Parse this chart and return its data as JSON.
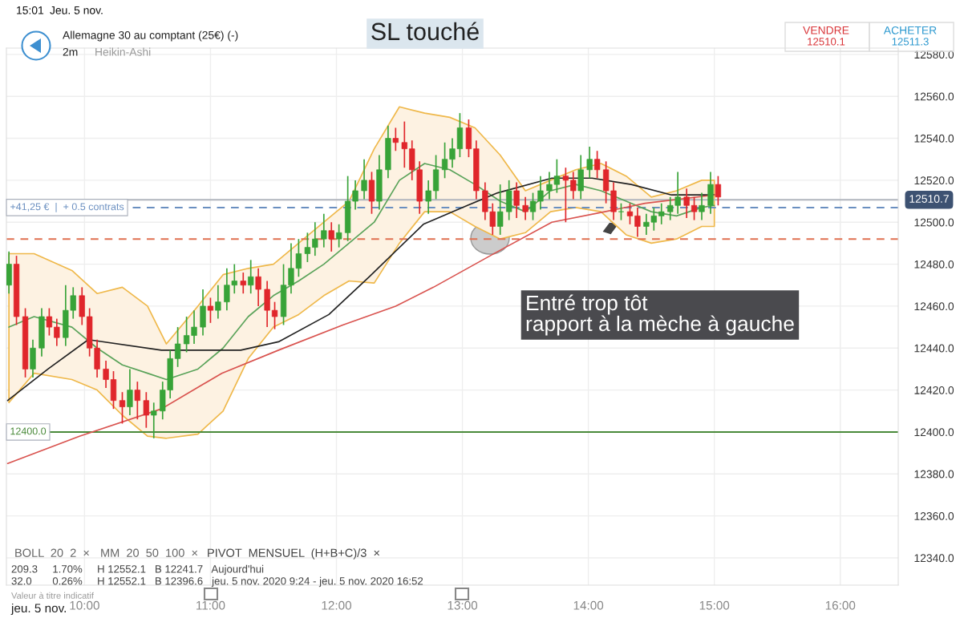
{
  "chart_data": {
    "type": "candlestick",
    "title": "SL touché",
    "annotations": [
      "15:01",
      "Jeu. 5 nov.",
      "Allemagne 30 au comptant (25€) (-)",
      "2m",
      "Heikin-Ashi",
      "VENDRE",
      "12510.1",
      "ACHETER",
      "12511.3",
      "BOLL  20  2  ×",
      "MM  20  50  100  ×",
      "PIVOT  MENSUEL  (H+B+C)/3  ×",
      "209.3     1.70%     H 12552.1   B 12241.7   Aujourd'hui",
      "32.0       0.26%     H 12552.1   B 12396.6   jeu. 5 nov. 2020 9:24 - jeu. 5 nov. 2020 16:52",
      "Valeur à titre indicatif",
      "jeu. 5 nov.",
      "Entré trop tôt\nrapport à la mèche à gauche"
    ],
    "x": [
      9.4,
      9.46,
      9.53,
      9.59,
      9.66,
      9.72,
      9.78,
      9.85,
      9.91,
      9.98,
      10.04,
      10.1,
      10.17,
      10.23,
      10.3,
      10.36,
      10.42,
      10.49,
      10.55,
      10.62,
      10.68,
      10.74,
      10.81,
      10.87,
      10.94,
      11.0,
      11.06,
      11.13,
      11.19,
      11.26,
      11.32,
      11.38,
      11.45,
      11.51,
      11.58,
      11.64,
      11.7,
      11.77,
      11.83,
      11.9,
      11.96,
      12.02,
      12.09,
      12.15,
      12.22,
      12.28,
      12.34,
      12.41,
      12.47,
      12.54,
      12.6,
      12.66,
      12.73,
      12.79,
      12.86,
      12.92,
      12.98,
      13.05,
      13.11,
      13.18,
      13.24,
      13.3,
      13.37,
      13.43,
      13.5,
      13.56,
      13.62,
      13.69,
      13.75,
      13.82,
      13.88,
      13.94,
      14.01,
      14.07,
      14.14,
      14.2,
      14.26,
      14.33,
      14.39,
      14.46,
      14.52,
      14.58,
      14.65,
      14.71,
      14.78,
      14.84,
      14.9,
      14.97,
      15.03
    ],
    "ohlc": [
      [
        12470,
        12486,
        12466,
        12480
      ],
      [
        12480,
        12484,
        12451,
        12455
      ],
      [
        12455,
        12459,
        12426,
        12430
      ],
      [
        12430,
        12444,
        12426,
        12440
      ],
      [
        12440,
        12459,
        12436,
        12455
      ],
      [
        12455,
        12459,
        12446,
        12450
      ],
      [
        12450,
        12454,
        12441,
        12445
      ],
      [
        12445,
        12470,
        12441,
        12458
      ],
      [
        12458,
        12469,
        12454,
        12465
      ],
      [
        12465,
        12469,
        12451,
        12455
      ],
      [
        12455,
        12459,
        12436,
        12440
      ],
      [
        12440,
        12444,
        12426,
        12430
      ],
      [
        12430,
        12434,
        12421,
        12425
      ],
      [
        12425,
        12429,
        12411,
        12415
      ],
      [
        12415,
        12419,
        12404,
        12412
      ],
      [
        12412,
        12430,
        12408,
        12420
      ],
      [
        12420,
        12424,
        12406,
        12415
      ],
      [
        12415,
        12419,
        12402,
        12408
      ],
      [
        12408,
        12414,
        12397,
        12410
      ],
      [
        12410,
        12424,
        12406,
        12420
      ],
      [
        12420,
        12439,
        12416,
        12435
      ],
      [
        12435,
        12450,
        12431,
        12442
      ],
      [
        12442,
        12455,
        12438,
        12446
      ],
      [
        12446,
        12458,
        12442,
        12450
      ],
      [
        12450,
        12468,
        12446,
        12460
      ],
      [
        12460,
        12464,
        12452,
        12458
      ],
      [
        12458,
        12470,
        12454,
        12462
      ],
      [
        12462,
        12478,
        12458,
        12470
      ],
      [
        12470,
        12480,
        12466,
        12472
      ],
      [
        12472,
        12476,
        12466,
        12470
      ],
      [
        12470,
        12482,
        12466,
        12474
      ],
      [
        12474,
        12478,
        12460,
        12468
      ],
      [
        12468,
        12472,
        12450,
        12458
      ],
      [
        12458,
        12462,
        12449,
        12455
      ],
      [
        12455,
        12480,
        12451,
        12470
      ],
      [
        12470,
        12490,
        12466,
        12478
      ],
      [
        12478,
        12492,
        12474,
        12485
      ],
      [
        12485,
        12495,
        12481,
        12488
      ],
      [
        12488,
        12500,
        12484,
        12492
      ],
      [
        12492,
        12504,
        12488,
        12496
      ],
      [
        12496,
        12500,
        12486,
        12492
      ],
      [
        12492,
        12499,
        12488,
        12495
      ],
      [
        12495,
        12522,
        12491,
        12510
      ],
      [
        12510,
        12520,
        12506,
        12515
      ],
      [
        12515,
        12530,
        12511,
        12520
      ],
      [
        12520,
        12524,
        12504,
        12510
      ],
      [
        12510,
        12532,
        12506,
        12525
      ],
      [
        12525,
        12546,
        12521,
        12540
      ],
      [
        12540,
        12545,
        12534,
        12538
      ],
      [
        12538,
        12548,
        12526,
        12535
      ],
      [
        12535,
        12539,
        12520,
        12525
      ],
      [
        12525,
        12529,
        12504,
        12510
      ],
      [
        12510,
        12520,
        12504,
        12515
      ],
      [
        12515,
        12532,
        12511,
        12525
      ],
      [
        12525,
        12538,
        12521,
        12530
      ],
      [
        12530,
        12540,
        12526,
        12535
      ],
      [
        12535,
        12552,
        12531,
        12545
      ],
      [
        12545,
        12549,
        12531,
        12535
      ],
      [
        12535,
        12539,
        12511,
        12515
      ],
      [
        12515,
        12519,
        12501,
        12505
      ],
      [
        12505,
        12509,
        12494,
        12498
      ],
      [
        12498,
        12518,
        12494,
        12505
      ],
      [
        12505,
        12520,
        12501,
        12515
      ],
      [
        12515,
        12519,
        12502,
        12508
      ],
      [
        12508,
        12512,
        12501,
        12505
      ],
      [
        12505,
        12514,
        12501,
        12510
      ],
      [
        12510,
        12522,
        12506,
        12515
      ],
      [
        12515,
        12524,
        12511,
        12518
      ],
      [
        12518,
        12530,
        12514,
        12522
      ],
      [
        12522,
        12526,
        12500,
        12520
      ],
      [
        12520,
        12524,
        12511,
        12515
      ],
      [
        12515,
        12532,
        12511,
        12525
      ],
      [
        12525,
        12536,
        12521,
        12530
      ],
      [
        12530,
        12534,
        12521,
        12525
      ],
      [
        12525,
        12529,
        12509,
        12515
      ],
      [
        12515,
        12519,
        12501,
        12505
      ],
      [
        12505,
        12509,
        12501,
        12505
      ],
      [
        12505,
        12509,
        12499,
        12503
      ],
      [
        12503,
        12507,
        12493,
        12498
      ],
      [
        12498,
        12504,
        12494,
        12500
      ],
      [
        12500,
        12507,
        12496,
        12503
      ],
      [
        12503,
        12509,
        12499,
        12505
      ],
      [
        12505,
        12512,
        12501,
        12508
      ],
      [
        12508,
        12524,
        12504,
        12512
      ],
      [
        12512,
        12516,
        12502,
        12508
      ],
      [
        12508,
        12512,
        12501,
        12505
      ],
      [
        12505,
        12514,
        12501,
        12508
      ],
      [
        12508,
        12524,
        12504,
        12518
      ],
      [
        12518,
        12522,
        12508,
        12512
      ]
    ],
    "series": [
      {
        "type": "line",
        "color": "#5aa35a",
        "x": [
          9.4,
          9.6,
          9.9,
          10.1,
          10.3,
          10.5,
          10.65,
          10.9,
          11.1,
          11.3,
          11.5,
          11.7,
          11.9,
          12.1,
          12.3,
          12.5,
          12.7,
          12.9,
          13.1,
          13.3,
          13.5,
          13.7,
          13.9,
          14.1,
          14.3,
          14.5,
          14.7,
          14.9,
          15.0
        ],
        "values": [
          12450,
          12455,
          12450,
          12440,
          12432,
          12428,
          12425,
          12430,
          12440,
          12455,
          12465,
          12472,
          12480,
          12490,
          12500,
          12520,
          12528,
          12525,
          12518,
          12510,
          12505,
          12515,
          12518,
          12515,
          12510,
          12505,
          12503,
          12507,
          12508
        ],
        "upper": [
          12485,
          12485,
          12477,
          12466,
          12469,
          12460,
          12442,
          12460,
          12475,
          12478,
          12480,
          12490,
          12500,
          12510,
          12535,
          12555,
          12552,
          12550,
          12545,
          12532,
          12515,
          12520,
          12525,
          12528,
          12522,
          12512,
          12515,
          12520,
          12520
        ],
        "lower": [
          12414,
          12428,
          12425,
          12420,
          12408,
          12398,
          12397,
          12399,
          12410,
          12435,
          12450,
          12456,
          12465,
          12472,
          12471,
          12490,
          12505,
          12505,
          12498,
          12492,
          12495,
          12505,
          12507,
          12505,
          12494,
          12490,
          12492,
          12498,
          12498
        ]
      },
      {
        "type": "line",
        "color": "#222222",
        "x": [
          9.39,
          9.71,
          10.03,
          10.61,
          11.24,
          11.54,
          11.94,
          12.26,
          12.69,
          13.04,
          13.28,
          13.71,
          14.03,
          14.34,
          14.66,
          15.0
        ],
        "values": [
          12415,
          12430,
          12444,
          12439,
          12439,
          12443,
          12456,
          12474,
          12499,
          12508,
          12514,
          12521,
          12521,
          12518,
          12513,
          12513
        ]
      },
      {
        "type": "line",
        "color": "#d9534f",
        "x": [
          9.39,
          9.96,
          10.61,
          11.09,
          11.54,
          12.05,
          12.47,
          12.77,
          13.28,
          13.71,
          14.13,
          14.45,
          15.0
        ],
        "values": [
          12385,
          12398,
          12411,
          12428,
          12439,
          12451,
          12460,
          12469,
          12486,
          12500,
          12505,
          12509,
          12513
        ]
      }
    ],
    "ref_lines": [
      {
        "axis": "y",
        "value": 12400,
        "label": "12400.0",
        "color": "#4a8a3a",
        "line_style": "solid"
      },
      {
        "axis": "y",
        "value": 12510.7,
        "label": "12510.7",
        "color": "#b0b4bc",
        "line_style": "solid"
      },
      {
        "axis": "y",
        "value": 12507,
        "label": "+41,25 €  |  + 0.5 contrats",
        "color": "#6a8fc0",
        "line_style": "dashed"
      },
      {
        "axis": "y",
        "value": 12492,
        "color": "#e07050",
        "line_style": "dashed"
      }
    ],
    "xlim": [
      9.38,
      16.46
    ],
    "ylim": [
      12327,
      12583
    ],
    "xticks": [
      {
        "value": 10,
        "label": "10:00"
      },
      {
        "value": 11,
        "label": "11:00"
      },
      {
        "value": 12,
        "label": "12:00"
      },
      {
        "value": 13,
        "label": "13:00"
      },
      {
        "value": 14,
        "label": "14:00"
      },
      {
        "value": 15,
        "label": "15:00"
      },
      {
        "value": 16,
        "label": "16:00"
      }
    ],
    "yticks": [
      {
        "value": 12340,
        "label": "12340.0"
      },
      {
        "value": 12360,
        "label": "12360.0"
      },
      {
        "value": 12380,
        "label": "12380.0"
      },
      {
        "value": 12400,
        "label": "12400.0"
      },
      {
        "value": 12420,
        "label": "12420.0"
      },
      {
        "value": 12440,
        "label": "12440.0"
      },
      {
        "value": 12460,
        "label": "12460.0"
      },
      {
        "value": 12480,
        "label": "12480.0"
      },
      {
        "value": 12500,
        "label": "12500.0"
      },
      {
        "value": 12520,
        "label": "12520.0"
      },
      {
        "value": 12540,
        "label": "12540.0"
      },
      {
        "value": 12560,
        "label": "12560.0"
      },
      {
        "value": 12580,
        "label": "12580.0"
      }
    ],
    "grid": true
  }
}
